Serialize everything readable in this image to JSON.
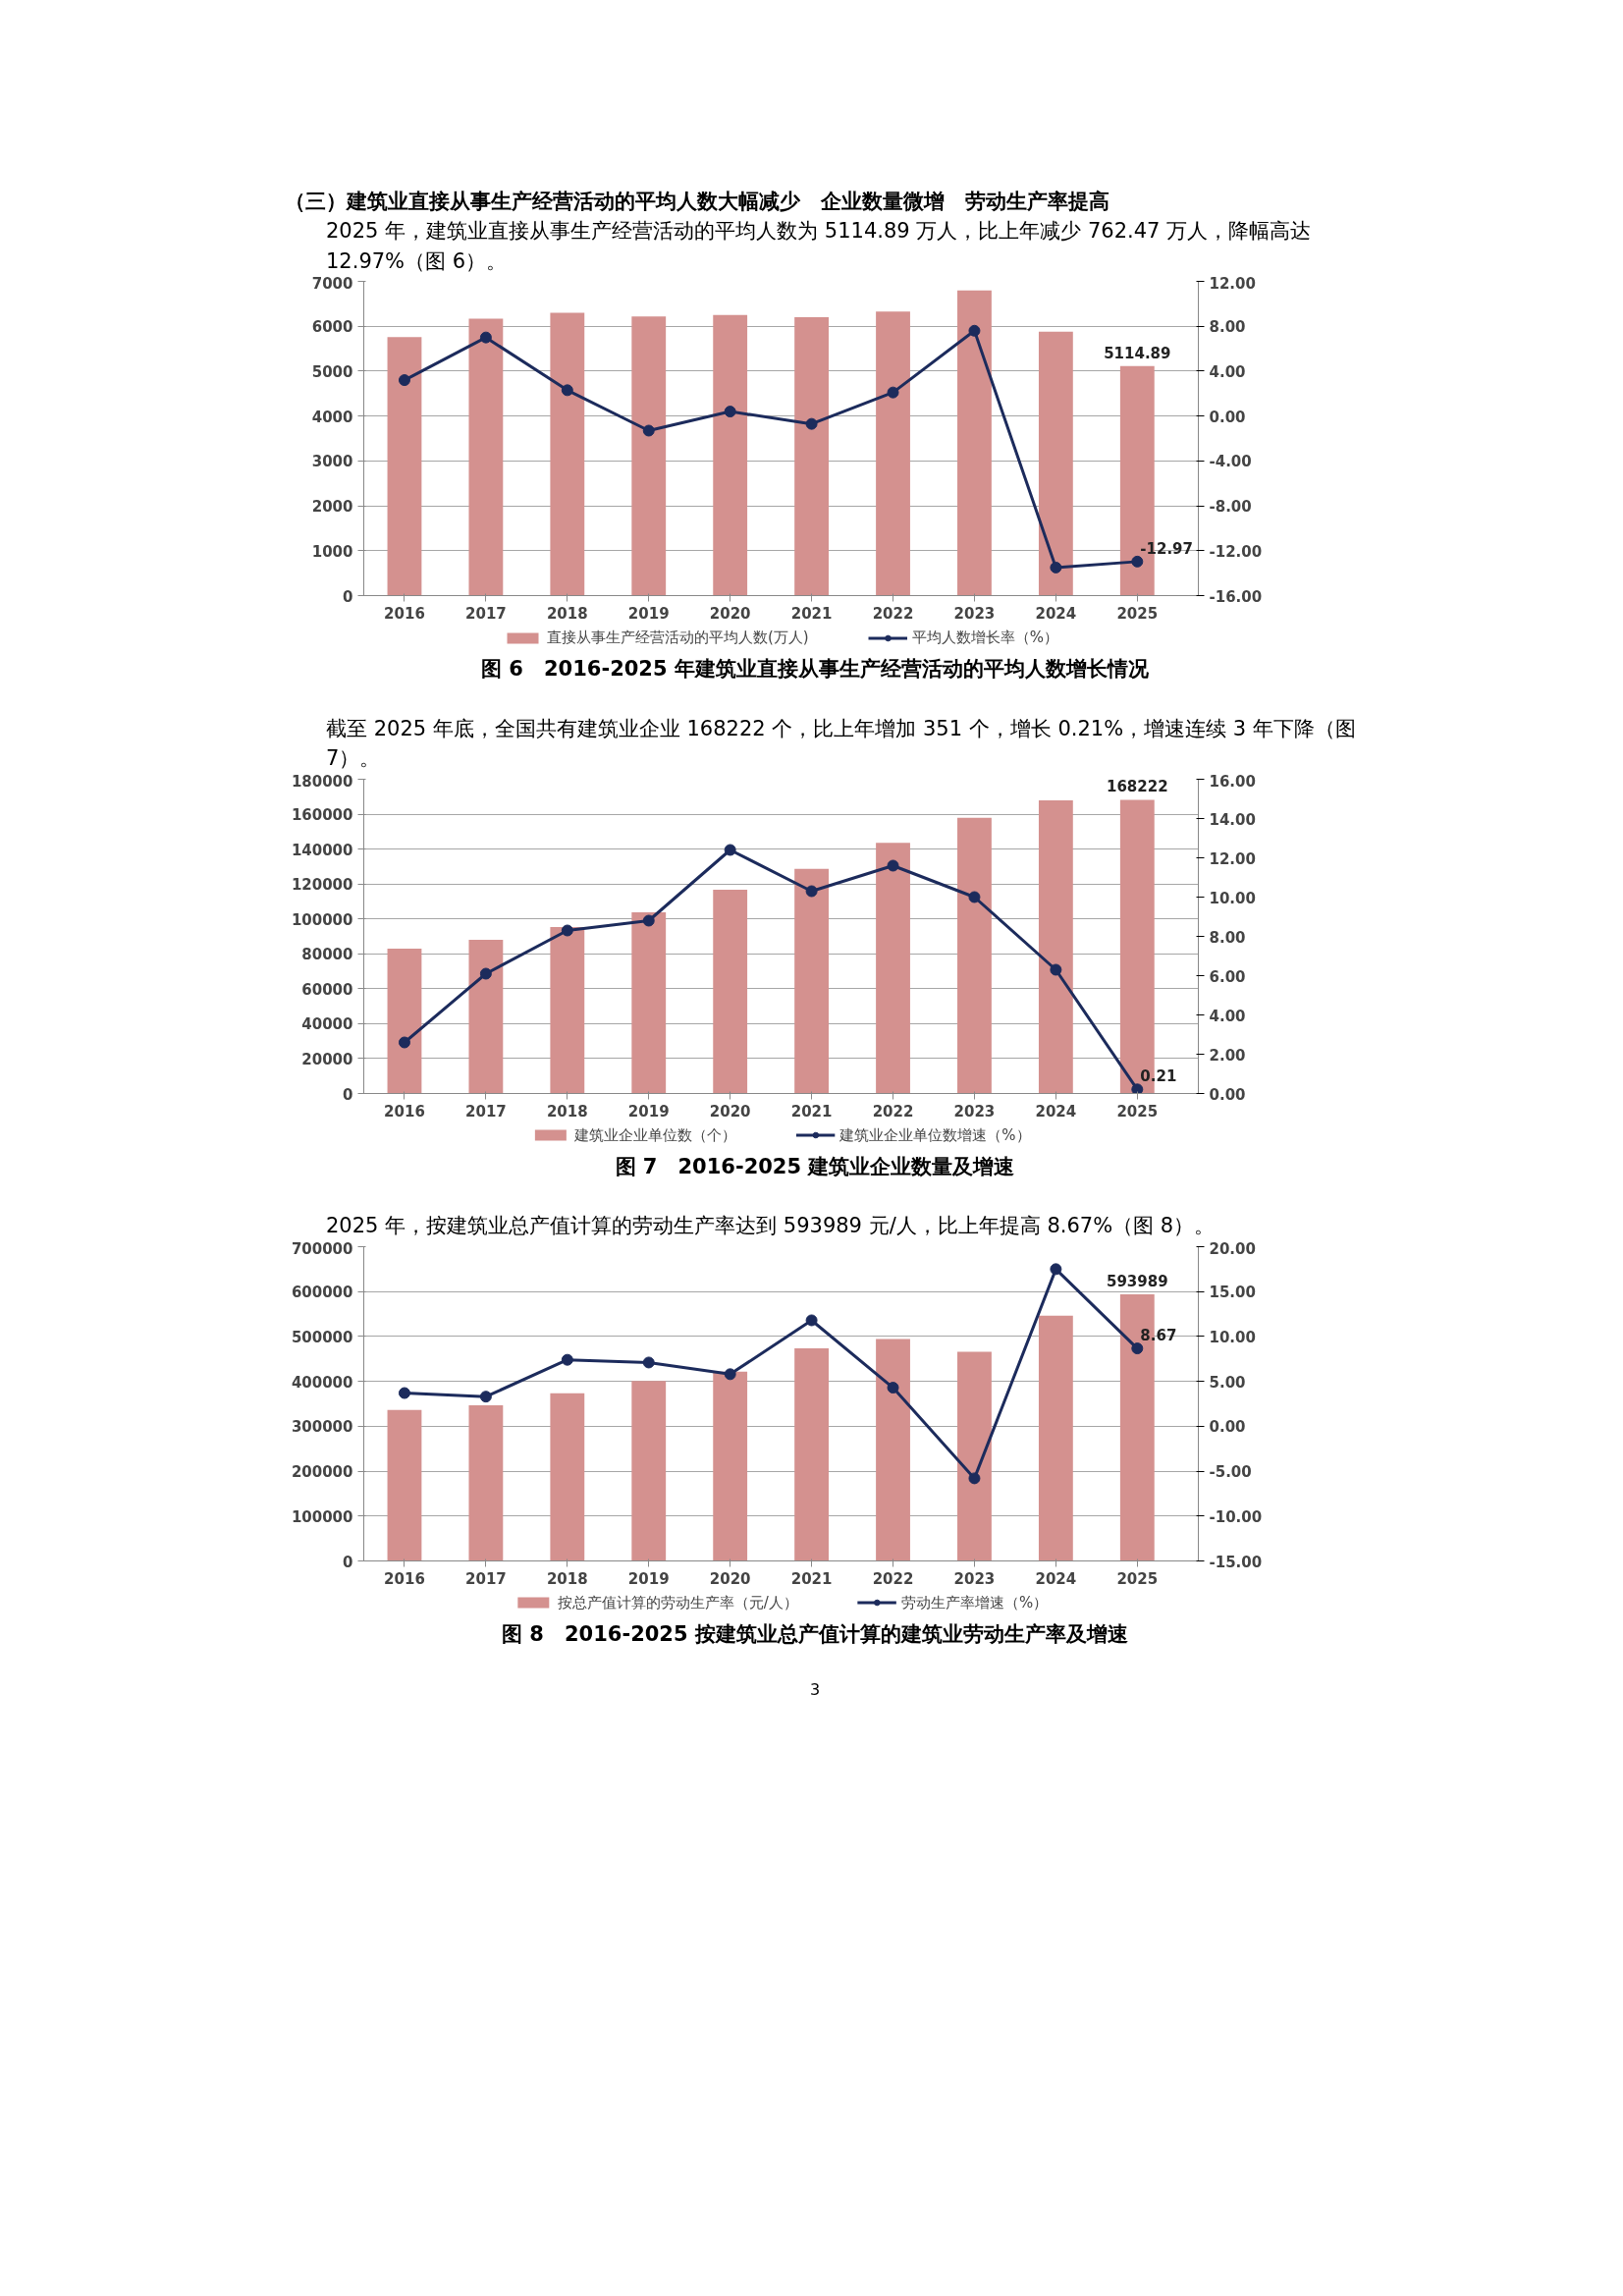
{
  "chart_data": [
    {
      "type": "bar",
      "annotations": [
        "（三）建筑业直接从事生产经营活动的平均人数大幅减少　企业数量微增　劳动生产率提高",
        "2025 年，建筑业直接从事生产经营活动的平均人数为 5114.89 万人，比上年减少 762.47 万人，降幅高达 12.97%（图 6）。"
      ],
      "title": "图 6　2016-2025 年建筑业直接从事生产经营活动的平均人数增长情况",
      "categories": [
        "2016",
        "2017",
        "2018",
        "2019",
        "2020",
        "2021",
        "2022",
        "2023",
        "2024",
        "2025"
      ],
      "series": [
        {
          "name": "直接从事生产经营活动的平均人数(万人)",
          "color": "#d4918f",
          "values": [
            5760,
            6170,
            6300,
            6220,
            6250,
            6200,
            6330,
            6800,
            5877,
            5114.89
          ],
          "value_labels": [
            null,
            null,
            null,
            null,
            null,
            null,
            null,
            null,
            null,
            "5114.89"
          ]
        },
        {
          "name": "平均人数增长率（%）",
          "type": "line",
          "axis": "y2",
          "color": "#1c2b5c",
          "marker": "circle",
          "values": [
            3.2,
            7.0,
            2.3,
            -1.3,
            0.4,
            -0.7,
            2.1,
            7.6,
            -13.5,
            -12.97
          ],
          "value_labels": [
            null,
            null,
            null,
            null,
            null,
            null,
            null,
            null,
            null,
            "-12.97"
          ]
        }
      ],
      "ylim": [
        0,
        7000
      ],
      "yticks": [
        0,
        1000,
        2000,
        3000,
        4000,
        5000,
        6000,
        7000
      ],
      "y2lim": [
        -16,
        12
      ],
      "y2ticks": [
        {
          "value": -16,
          "label": "-16.00"
        },
        {
          "value": -12,
          "label": "-12.00"
        },
        {
          "value": -8,
          "label": "-8.00"
        },
        {
          "value": -4,
          "label": "-4.00"
        },
        {
          "value": 0,
          "label": "0.00"
        },
        {
          "value": 4,
          "label": "4.00"
        },
        {
          "value": 8,
          "label": "8.00"
        },
        {
          "value": 12,
          "label": "12.00"
        }
      ],
      "grid": "y",
      "legend": "bottom"
    },
    {
      "type": "bar",
      "annotations": [
        "截至 2025 年底，全国共有建筑业企业 168222 个，比上年增加 351 个，增长 0.21%，增速连续 3 年下降（图 7）。"
      ],
      "title": "图 7　2016-2025 建筑业企业数量及增速",
      "categories": [
        "2016",
        "2017",
        "2018",
        "2019",
        "2020",
        "2021",
        "2022",
        "2023",
        "2024",
        "2025"
      ],
      "series": [
        {
          "name": "建筑业企业单位数（个）",
          "color": "#d4918f",
          "values": [
            83000,
            88100,
            95400,
            103800,
            116700,
            128700,
            143600,
            157900,
            167900,
            168222
          ],
          "value_labels": [
            null,
            null,
            null,
            null,
            null,
            null,
            null,
            null,
            null,
            "168222"
          ]
        },
        {
          "name": "建筑业企业单位数增速（%）",
          "type": "line",
          "axis": "y2",
          "color": "#1c2b5c",
          "marker": "circle",
          "values": [
            2.6,
            6.1,
            8.3,
            8.8,
            12.4,
            10.3,
            11.6,
            10.0,
            6.3,
            0.21
          ],
          "value_labels": [
            null,
            null,
            null,
            null,
            null,
            null,
            null,
            null,
            null,
            "0.21"
          ]
        }
      ],
      "ylim": [
        0,
        180000
      ],
      "yticks": [
        0,
        20000,
        40000,
        60000,
        80000,
        100000,
        120000,
        140000,
        160000,
        180000
      ],
      "y2lim": [
        0,
        16
      ],
      "y2ticks": [
        {
          "value": 0,
          "label": "0.00"
        },
        {
          "value": 2,
          "label": "2.00"
        },
        {
          "value": 4,
          "label": "4.00"
        },
        {
          "value": 6,
          "label": "6.00"
        },
        {
          "value": 8,
          "label": "8.00"
        },
        {
          "value": 10,
          "label": "10.00"
        },
        {
          "value": 12,
          "label": "12.00"
        },
        {
          "value": 14,
          "label": "14.00"
        },
        {
          "value": 16,
          "label": "16.00"
        }
      ],
      "grid": "y",
      "legend": "bottom"
    },
    {
      "type": "bar",
      "annotations": [
        "2025 年，按建筑业总产值计算的劳动生产率达到 593989 元/人，比上年提高 8.67%（图 8）。",
        "3"
      ],
      "title": "图 8　2016-2025 按建筑业总产值计算的建筑业劳动生产率及增速",
      "categories": [
        "2016",
        "2017",
        "2018",
        "2019",
        "2020",
        "2021",
        "2022",
        "2023",
        "2024",
        "2025"
      ],
      "series": [
        {
          "name": "按总产值计算的劳动生产率（元/人）",
          "color": "#d4918f",
          "values": [
            336600,
            346500,
            373600,
            400700,
            421700,
            473500,
            494500,
            466000,
            546600,
            593989
          ],
          "value_labels": [
            null,
            null,
            null,
            null,
            null,
            null,
            null,
            null,
            null,
            "593989"
          ]
        },
        {
          "name": "劳动生产率增速（%）",
          "type": "line",
          "axis": "y2",
          "color": "#1c2b5c",
          "marker": "circle",
          "values": [
            3.7,
            3.3,
            7.4,
            7.1,
            5.8,
            11.8,
            4.3,
            -5.8,
            17.5,
            8.67
          ],
          "value_labels": [
            null,
            null,
            null,
            null,
            null,
            null,
            null,
            null,
            null,
            "8.67"
          ]
        }
      ],
      "ylim": [
        0,
        700000
      ],
      "yticks": [
        0,
        100000,
        200000,
        300000,
        400000,
        500000,
        600000,
        700000
      ],
      "y2lim": [
        -15,
        20
      ],
      "y2ticks": [
        {
          "value": -15,
          "label": "-15.00"
        },
        {
          "value": -10,
          "label": "-10.00"
        },
        {
          "value": -5,
          "label": "-5.00"
        },
        {
          "value": 0,
          "label": "0.00"
        },
        {
          "value": 5,
          "label": "5.00"
        },
        {
          "value": 10,
          "label": "10.00"
        },
        {
          "value": 15,
          "label": "15.00"
        },
        {
          "value": 20,
          "label": "20.00"
        }
      ],
      "grid": "y",
      "legend": "bottom"
    }
  ]
}
